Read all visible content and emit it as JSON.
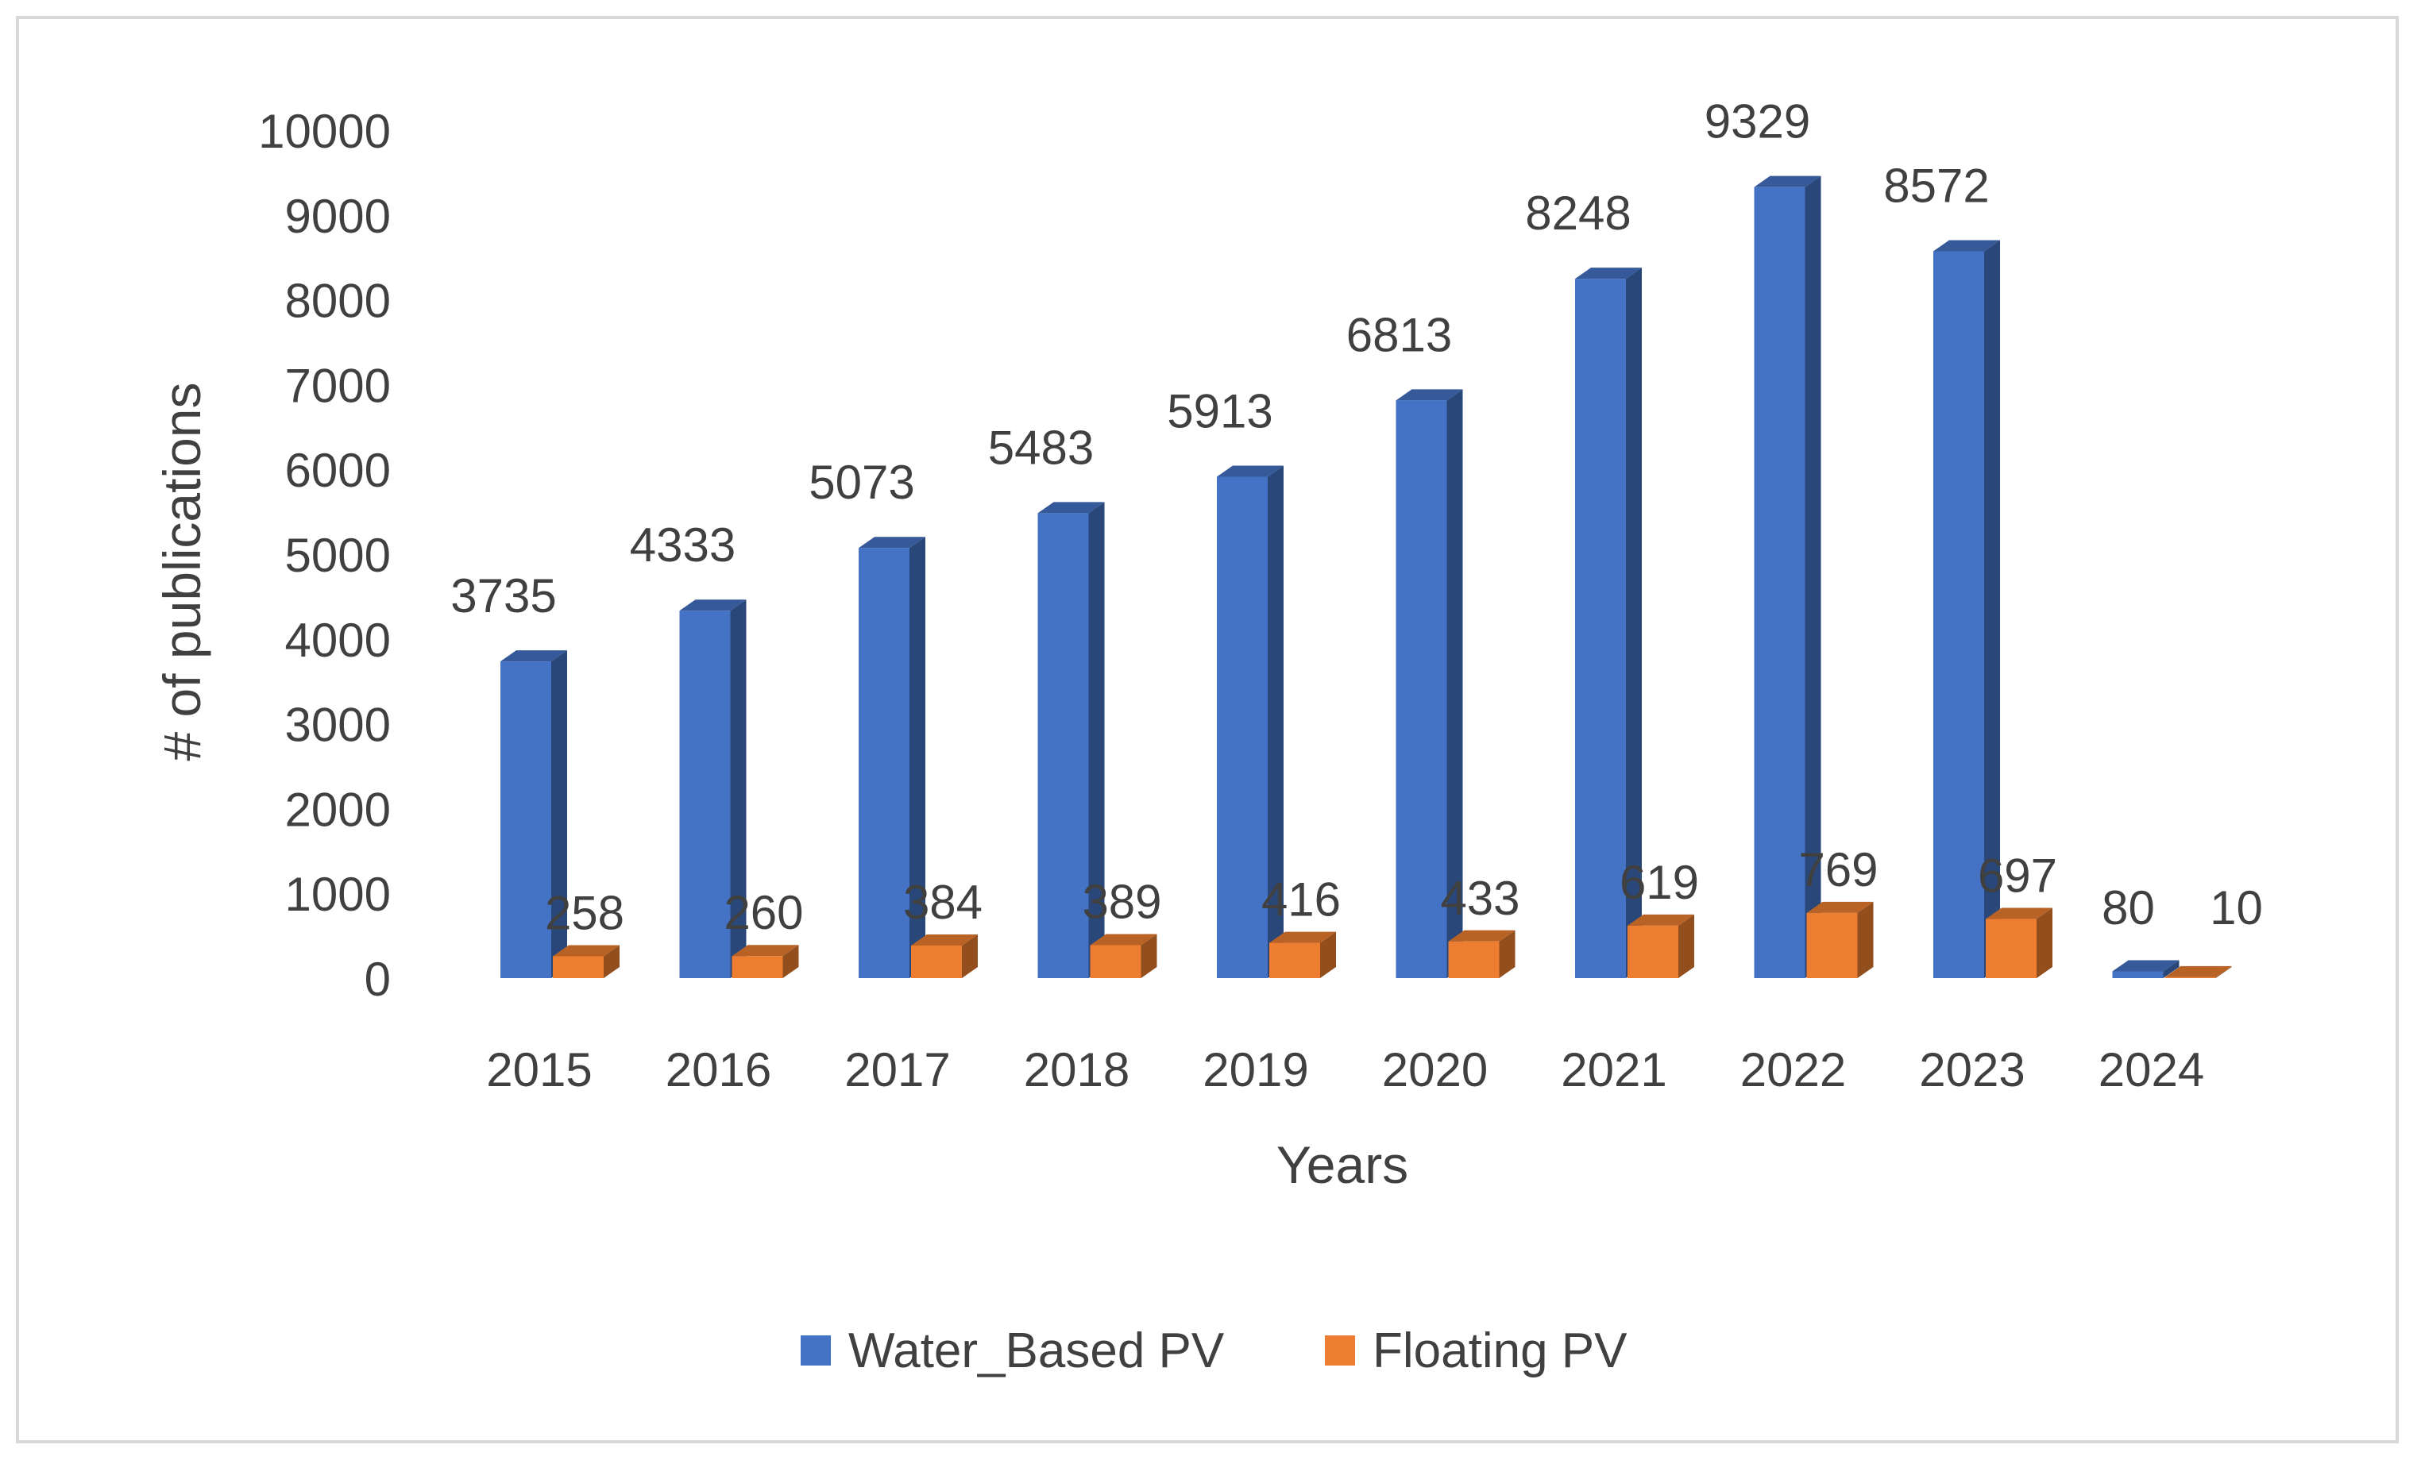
{
  "chart_data": {
    "type": "bar",
    "style": "3d-clustered-column",
    "title": "",
    "xlabel": "Years",
    "ylabel": "# of publications",
    "categories": [
      "2015",
      "2016",
      "2017",
      "2018",
      "2019",
      "2020",
      "2021",
      "2022",
      "2023",
      "2024"
    ],
    "series": [
      {
        "name": "Water_Based PV",
        "color": "#4472C4",
        "values": [
          3735,
          4333,
          5073,
          5483,
          5913,
          6813,
          8248,
          9329,
          8572,
          80
        ]
      },
      {
        "name": "Floating PV",
        "color": "#ED7D31",
        "values": [
          258,
          260,
          384,
          389,
          416,
          433,
          619,
          769,
          697,
          10
        ]
      }
    ],
    "ylim": [
      0,
      10000
    ],
    "yticks": [
      "0",
      "1000",
      "2000",
      "3000",
      "4000",
      "5000",
      "6000",
      "7000",
      "8000",
      "9000",
      "10000"
    ],
    "grid": false,
    "legend_position": "bottom"
  }
}
